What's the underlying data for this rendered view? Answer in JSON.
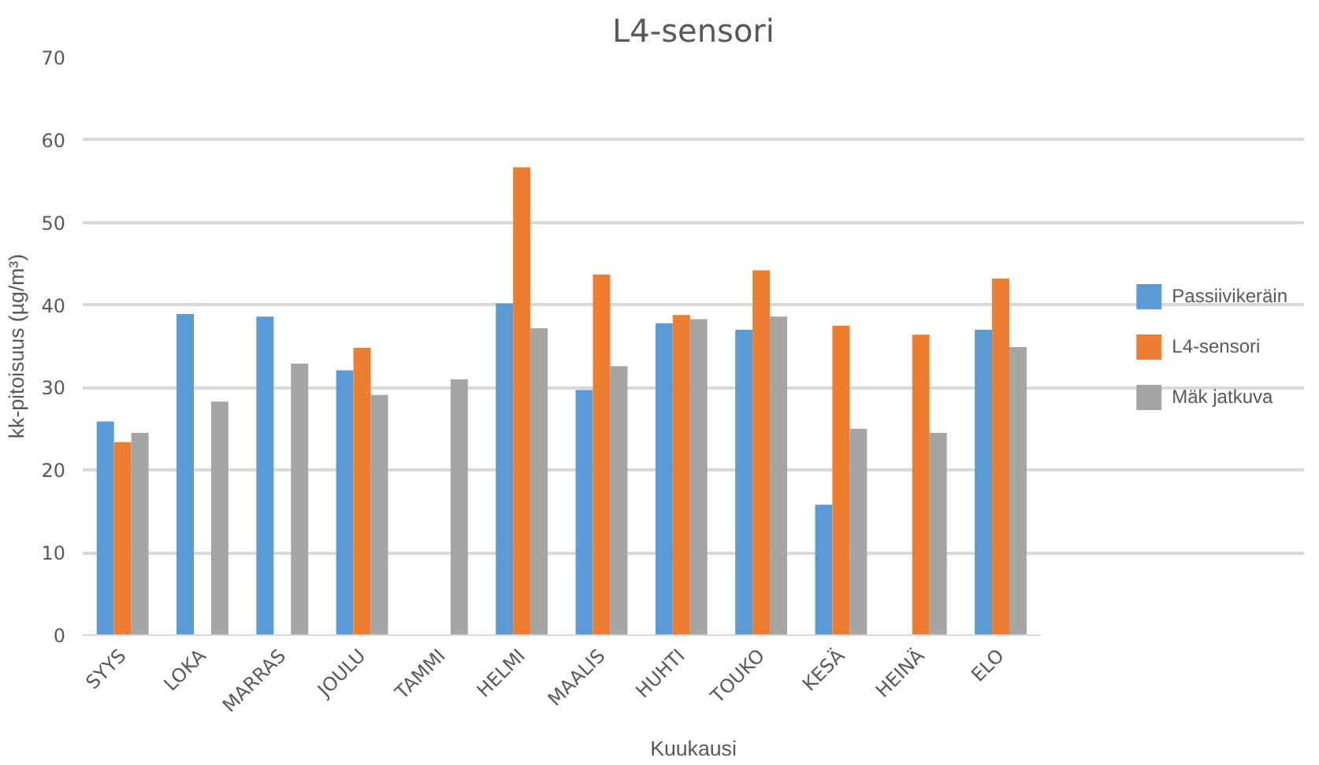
{
  "chart_data": {
    "type": "bar",
    "title": "L4-sensori",
    "xlabel": "Kuukausi",
    "ylabel": "kk-pitoisuus (µg/m³)",
    "categories": [
      "SYYS",
      "LOKA",
      "MARRAS",
      "JOULU",
      "TAMMI",
      "HELMI",
      "MAALIS",
      "HUHTI",
      "TOUKO",
      "KESÄ",
      "HEINÄ",
      "ELO"
    ],
    "series": [
      {
        "name": "Passiivikeräin",
        "color": "#5b9bd5",
        "values": [
          25.9,
          38.9,
          38.6,
          32.1,
          null,
          40.2,
          29.7,
          37.8,
          37.0,
          15.8,
          null,
          37.0
        ]
      },
      {
        "name": "L4-sensori",
        "color": "#ed7d31",
        "values": [
          23.4,
          null,
          null,
          34.8,
          null,
          56.7,
          43.7,
          38.8,
          44.2,
          37.5,
          36.4,
          43.2
        ]
      },
      {
        "name": "Mäk jatkuva",
        "color": "#a5a5a5",
        "values": [
          24.5,
          28.3,
          32.9,
          29.1,
          31.0,
          37.2,
          32.6,
          38.3,
          38.6,
          25.0,
          24.5,
          34.9
        ]
      }
    ],
    "ylim": [
      0,
      70
    ],
    "yticks": [
      0,
      10,
      20,
      30,
      40,
      50,
      60,
      70
    ],
    "grid": "y",
    "legend": "right"
  }
}
